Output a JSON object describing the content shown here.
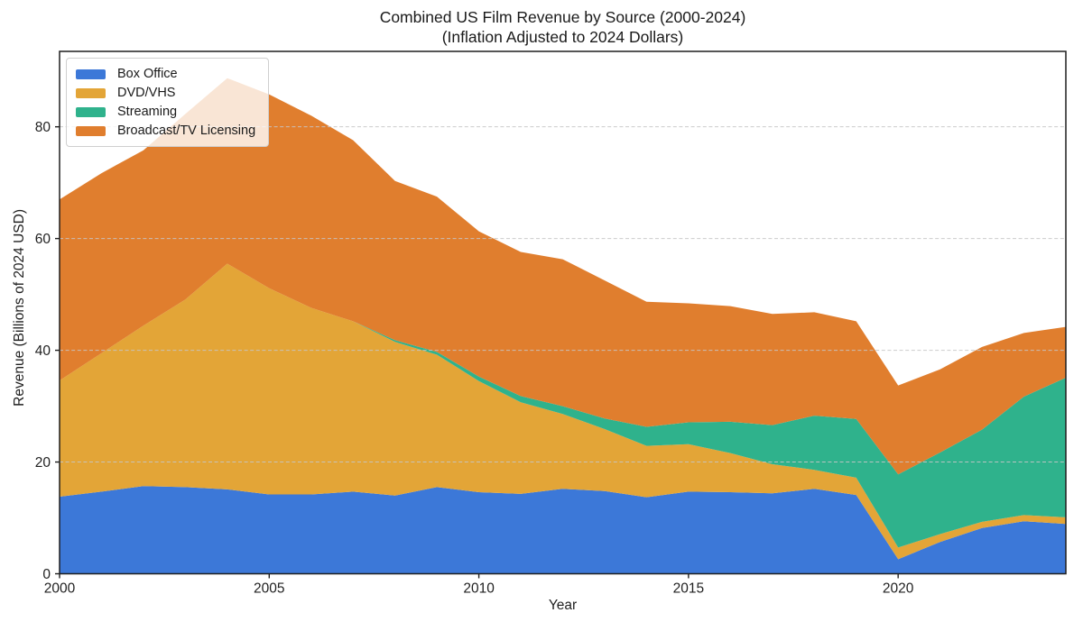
{
  "figure": {
    "title_line1": "Combined US Film Revenue by Source (2000-2024)",
    "title_line2": "(Inflation Adjusted to 2024 Dollars)"
  },
  "chart_data": {
    "type": "area",
    "stacked": true,
    "title": "Combined US Film Revenue by Source (2000-2024) (Inflation Adjusted to 2024 Dollars)",
    "xlabel": "Year",
    "ylabel": "Revenue (Billions of 2024 USD)",
    "x": [
      2000,
      2001,
      2002,
      2003,
      2004,
      2005,
      2006,
      2007,
      2008,
      2009,
      2010,
      2011,
      2012,
      2013,
      2014,
      2015,
      2016,
      2017,
      2018,
      2019,
      2020,
      2021,
      2022,
      2023,
      2024
    ],
    "xlim": [
      2000,
      2024
    ],
    "ylim": [
      0,
      93.5
    ],
    "xticks": [
      2000,
      2005,
      2010,
      2015,
      2020
    ],
    "yticks": [
      0,
      20,
      40,
      60,
      80
    ],
    "grid": {
      "axis": "y",
      "style": "dashed",
      "color": "#c6c6c6",
      "on": true,
      "above_data": true
    },
    "legend": {
      "position": "upper left",
      "background": "rgba(255,255,255,0.8)",
      "border_color": "#cfcfcf"
    },
    "axis_color": "#1f1f1f",
    "series": [
      {
        "name": "Box Office",
        "color": "#3c78d8",
        "values": [
          13.8,
          14.7,
          15.7,
          15.5,
          15.1,
          14.2,
          14.2,
          14.7,
          14.0,
          15.5,
          14.6,
          14.3,
          15.2,
          14.8,
          13.7,
          14.7,
          14.6,
          14.4,
          15.2,
          14.1,
          2.6,
          5.7,
          8.2,
          9.4,
          8.9
        ]
      },
      {
        "name": "DVD/VHS",
        "color": "#e3a537",
        "values": [
          20.8,
          24.8,
          28.7,
          33.6,
          40.4,
          36.9,
          33.4,
          30.5,
          27.5,
          23.7,
          19.9,
          16.4,
          13.4,
          11.1,
          9.2,
          8.5,
          7.0,
          5.2,
          3.4,
          3.1,
          2.1,
          1.4,
          1.1,
          1.1,
          1.2
        ]
      },
      {
        "name": "Streaming",
        "color": "#2fb28c",
        "values": [
          0,
          0,
          0,
          0,
          0,
          0,
          0,
          0,
          0.3,
          0.5,
          0.8,
          1.1,
          1.4,
          1.9,
          3.4,
          3.9,
          5.6,
          7.0,
          9.7,
          10.5,
          13.1,
          14.6,
          16.5,
          21.2,
          25.0
        ]
      },
      {
        "name": "Broadcast/TV Licensing",
        "color": "#e07e2e",
        "values": [
          32.4,
          32.2,
          31.4,
          33.2,
          33.2,
          34.7,
          34.4,
          32.4,
          28.5,
          27.8,
          26.0,
          25.8,
          26.3,
          24.7,
          22.4,
          21.3,
          20.7,
          19.9,
          18.5,
          17.5,
          15.9,
          14.9,
          14.8,
          11.4,
          9.1
        ]
      }
    ]
  }
}
